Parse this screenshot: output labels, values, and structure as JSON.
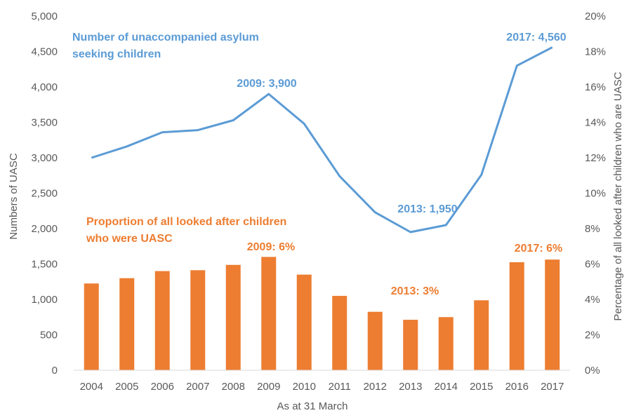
{
  "chart_data": {
    "type": "bar",
    "categories": [
      "2004",
      "2005",
      "2006",
      "2007",
      "2008",
      "2009",
      "2010",
      "2011",
      "2012",
      "2013",
      "2014",
      "2015",
      "2016",
      "2017"
    ],
    "xlabel": "As at 31 March",
    "ylabel_left": "Numbers of UASC",
    "ylabel_right": "Percentage of all looked after children who are UASC",
    "ylim_left": [
      0,
      5000
    ],
    "ylim_right": [
      0,
      20
    ],
    "y_ticks_left": [
      "0",
      "500",
      "1,000",
      "1,500",
      "2,000",
      "2,500",
      "3,000",
      "3,500",
      "4,000",
      "4,500",
      "5,000"
    ],
    "y_ticks_right": [
      "0%",
      "2%",
      "4%",
      "6%",
      "8%",
      "10%",
      "12%",
      "14%",
      "16%",
      "18%",
      "20%"
    ],
    "grid": false,
    "series": [
      {
        "name": "Number of unaccompanied asylum seeking children",
        "type": "line",
        "axis": "left",
        "color": "#5B9BD5",
        "values": [
          3000,
          3160,
          3360,
          3390,
          3530,
          3900,
          3480,
          2740,
          2230,
          1950,
          2050,
          2760,
          4300,
          4560
        ]
      },
      {
        "name": "Proportion of all looked after children who were UASC",
        "type": "bar",
        "axis": "right",
        "color": "#ED7D31",
        "values": [
          4.9,
          5.2,
          5.6,
          5.65,
          5.95,
          6.4,
          5.4,
          4.2,
          3.3,
          2.85,
          3.0,
          3.95,
          6.1,
          6.25
        ]
      }
    ],
    "annotations": {
      "line_2009": "2009: 3,900",
      "line_2013": "2013: 1,950",
      "line_2017": "2017: 4,560",
      "bar_2009": "2009: 6%",
      "bar_2013": "2013: 3%",
      "bar_2017": "2017: 6%"
    },
    "legend_labels": {
      "line_title_1": "Number of unaccompanied asylum",
      "line_title_2": "seeking children",
      "bar_title_1": "Proportion of all looked after children",
      "bar_title_2": "who were UASC"
    }
  }
}
